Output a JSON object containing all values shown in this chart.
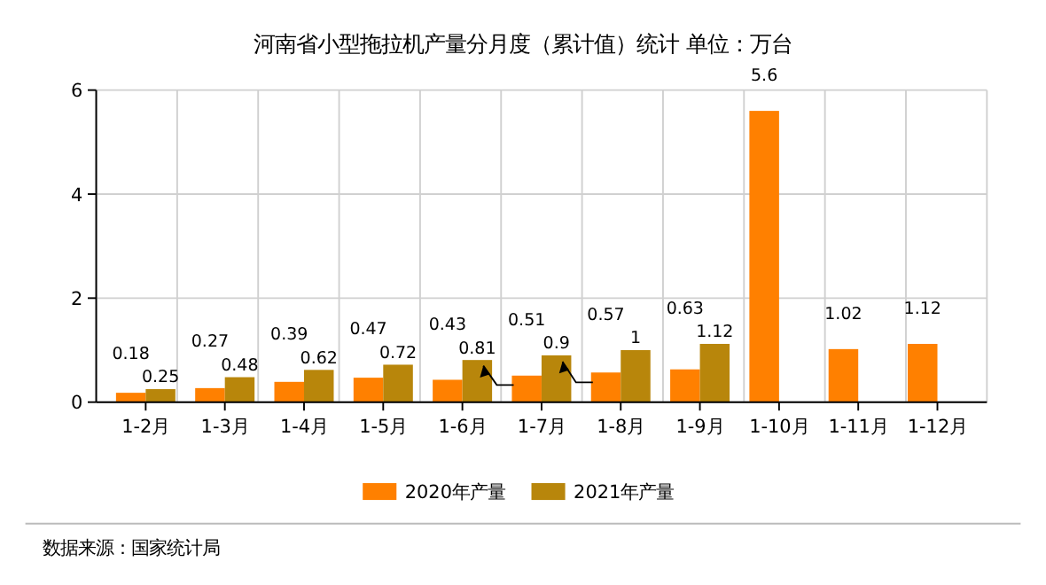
{
  "chart_data": {
    "type": "bar",
    "title": "河南省小型拖拉机产量分月度（累计值）统计 单位：万台",
    "categories": [
      "1-2月",
      "1-3月",
      "1-4月",
      "1-5月",
      "1-6月",
      "1-7月",
      "1-8月",
      "1-9月",
      "1-10月",
      "1-11月",
      "1-12月"
    ],
    "series": [
      {
        "name": "2020年产量",
        "color": "#ff8000",
        "values": [
          0.18,
          0.27,
          0.39,
          0.47,
          0.43,
          0.51,
          0.57,
          0.63,
          5.6,
          1.02,
          1.12
        ]
      },
      {
        "name": "2021年产量",
        "color": "#b8860b",
        "values": [
          0.25,
          0.48,
          0.62,
          0.72,
          0.81,
          0.9,
          1,
          1.12,
          null,
          null,
          null
        ]
      }
    ],
    "ylim": [
      0,
      6
    ],
    "yticks": [
      0,
      2,
      4,
      6
    ],
    "grid": true,
    "legend": "bottom",
    "data_labels": true,
    "annotations": [
      "数据来源：国家统计局"
    ]
  }
}
